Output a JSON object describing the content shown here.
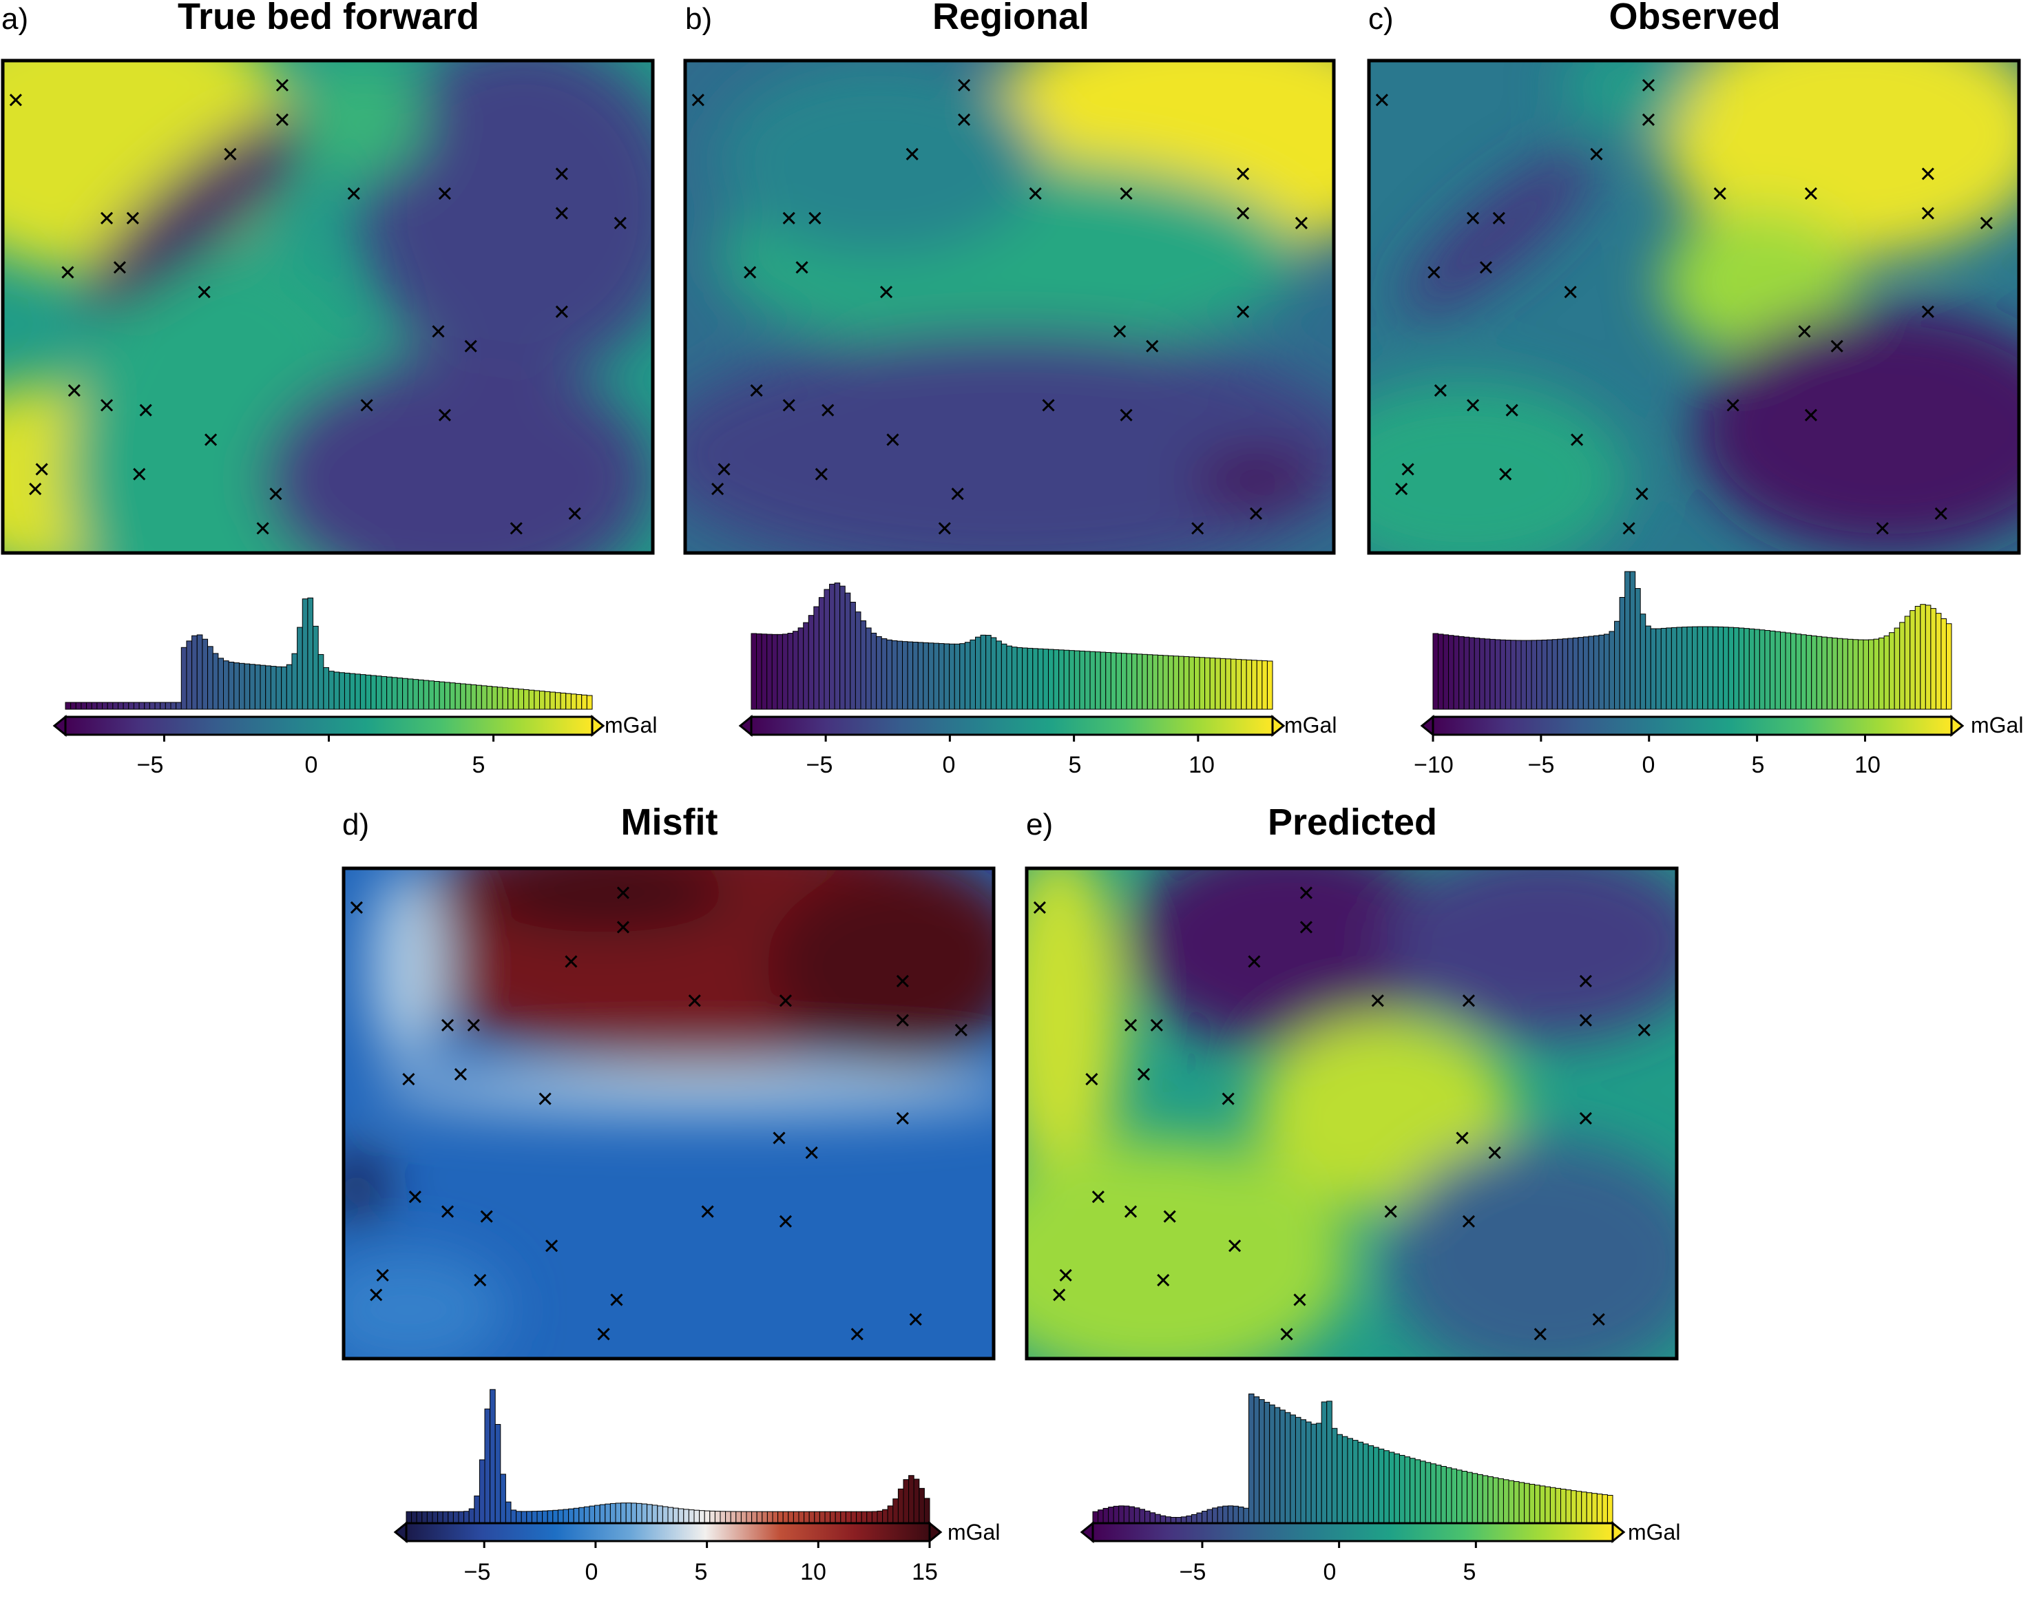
{
  "figure": {
    "colorbar_unit": "mGal",
    "panels": [
      {
        "letter": "a)",
        "title": "True bed forward",
        "cmap": "viridis",
        "ticks": [
          "−5",
          "0",
          "5"
        ]
      },
      {
        "letter": "b)",
        "title": "Regional",
        "cmap": "viridis",
        "ticks": [
          "−5",
          "0",
          "5",
          "10"
        ]
      },
      {
        "letter": "c)",
        "title": "Observed",
        "cmap": "viridis",
        "ticks": [
          "−10",
          "−5",
          "0",
          "5",
          "10"
        ]
      },
      {
        "letter": "d)",
        "title": "Misfit",
        "cmap": "balance",
        "ticks": [
          "−5",
          "0",
          "5",
          "10",
          "15"
        ]
      },
      {
        "letter": "e)",
        "title": "Predicted",
        "cmap": "viridis",
        "ticks": [
          "−5",
          "0",
          "5"
        ]
      }
    ]
  },
  "colors": {
    "viridis": [
      "#440154",
      "#46327e",
      "#365c8d",
      "#277f8e",
      "#1fa187",
      "#4ac16d",
      "#a0da39",
      "#fde725"
    ],
    "balance": [
      "#1a1a4a",
      "#2a4aa0",
      "#1e6fc4",
      "#6aa6d8",
      "#f2f0ee",
      "#c05038",
      "#8a1e22",
      "#3c0a12"
    ],
    "marker": "#000000",
    "frame": "#000000"
  },
  "chart_data": [
    {
      "type": "heatmap",
      "title": "True bed forward",
      "unit": "mGal",
      "color_range": [
        -8,
        8
      ],
      "colorbar_ticks": [
        -5,
        0,
        5
      ],
      "histogram_peak": -0.3,
      "points": [
        [
          0.02,
          0.92
        ],
        [
          0.43,
          0.95
        ],
        [
          0.43,
          0.88
        ],
        [
          0.35,
          0.81
        ],
        [
          0.16,
          0.68
        ],
        [
          0.2,
          0.68
        ],
        [
          0.1,
          0.57
        ],
        [
          0.18,
          0.58
        ],
        [
          0.31,
          0.53
        ],
        [
          0.54,
          0.73
        ],
        [
          0.68,
          0.73
        ],
        [
          0.86,
          0.77
        ],
        [
          0.86,
          0.69
        ],
        [
          0.95,
          0.67
        ],
        [
          0.86,
          0.49
        ],
        [
          0.67,
          0.45
        ],
        [
          0.72,
          0.42
        ],
        [
          0.11,
          0.33
        ],
        [
          0.16,
          0.3
        ],
        [
          0.22,
          0.29
        ],
        [
          0.32,
          0.23
        ],
        [
          0.56,
          0.3
        ],
        [
          0.68,
          0.28
        ],
        [
          0.06,
          0.17
        ],
        [
          0.05,
          0.13
        ],
        [
          0.21,
          0.16
        ],
        [
          0.42,
          0.12
        ],
        [
          0.4,
          0.05
        ],
        [
          0.79,
          0.05
        ],
        [
          0.88,
          0.08
        ]
      ]
    },
    {
      "type": "heatmap",
      "title": "Regional",
      "unit": "mGal",
      "color_range": [
        -8,
        13
      ],
      "colorbar_ticks": [
        -5,
        0,
        5,
        10
      ],
      "histogram_peak": -4.8,
      "points": [
        [
          0.02,
          0.92
        ],
        [
          0.43,
          0.95
        ],
        [
          0.43,
          0.88
        ],
        [
          0.35,
          0.81
        ],
        [
          0.16,
          0.68
        ],
        [
          0.2,
          0.68
        ],
        [
          0.1,
          0.57
        ],
        [
          0.18,
          0.58
        ],
        [
          0.31,
          0.53
        ],
        [
          0.54,
          0.73
        ],
        [
          0.68,
          0.73
        ],
        [
          0.86,
          0.77
        ],
        [
          0.86,
          0.69
        ],
        [
          0.95,
          0.67
        ],
        [
          0.86,
          0.49
        ],
        [
          0.67,
          0.45
        ],
        [
          0.72,
          0.42
        ],
        [
          0.11,
          0.33
        ],
        [
          0.16,
          0.3
        ],
        [
          0.22,
          0.29
        ],
        [
          0.32,
          0.23
        ],
        [
          0.56,
          0.3
        ],
        [
          0.68,
          0.28
        ],
        [
          0.06,
          0.17
        ],
        [
          0.05,
          0.13
        ],
        [
          0.21,
          0.16
        ],
        [
          0.42,
          0.12
        ],
        [
          0.4,
          0.05
        ],
        [
          0.79,
          0.05
        ],
        [
          0.88,
          0.08
        ]
      ]
    },
    {
      "type": "heatmap",
      "title": "Observed",
      "unit": "mGal",
      "color_range": [
        -10,
        14
      ],
      "colorbar_ticks": [
        -10,
        -5,
        0,
        5,
        10
      ],
      "histogram_peak": -1.0,
      "points": [
        [
          0.02,
          0.92
        ],
        [
          0.43,
          0.95
        ],
        [
          0.43,
          0.88
        ],
        [
          0.35,
          0.81
        ],
        [
          0.16,
          0.68
        ],
        [
          0.2,
          0.68
        ],
        [
          0.1,
          0.57
        ],
        [
          0.18,
          0.58
        ],
        [
          0.31,
          0.53
        ],
        [
          0.54,
          0.73
        ],
        [
          0.68,
          0.73
        ],
        [
          0.86,
          0.77
        ],
        [
          0.86,
          0.69
        ],
        [
          0.95,
          0.67
        ],
        [
          0.86,
          0.49
        ],
        [
          0.67,
          0.45
        ],
        [
          0.72,
          0.42
        ],
        [
          0.11,
          0.33
        ],
        [
          0.16,
          0.3
        ],
        [
          0.22,
          0.29
        ],
        [
          0.32,
          0.23
        ],
        [
          0.56,
          0.3
        ],
        [
          0.68,
          0.28
        ],
        [
          0.06,
          0.17
        ],
        [
          0.05,
          0.13
        ],
        [
          0.21,
          0.16
        ],
        [
          0.42,
          0.12
        ],
        [
          0.4,
          0.05
        ],
        [
          0.79,
          0.05
        ],
        [
          0.88,
          0.08
        ]
      ]
    },
    {
      "type": "heatmap",
      "title": "Misfit",
      "unit": "mGal",
      "color_range": [
        -8.5,
        15
      ],
      "colorbar_ticks": [
        -5,
        0,
        5,
        10,
        15
      ],
      "histogram_peak": -5.0,
      "points": [
        [
          0.02,
          0.92
        ],
        [
          0.43,
          0.95
        ],
        [
          0.43,
          0.88
        ],
        [
          0.35,
          0.81
        ],
        [
          0.16,
          0.68
        ],
        [
          0.2,
          0.68
        ],
        [
          0.1,
          0.57
        ],
        [
          0.18,
          0.58
        ],
        [
          0.31,
          0.53
        ],
        [
          0.54,
          0.73
        ],
        [
          0.68,
          0.73
        ],
        [
          0.86,
          0.77
        ],
        [
          0.86,
          0.69
        ],
        [
          0.95,
          0.67
        ],
        [
          0.86,
          0.49
        ],
        [
          0.67,
          0.45
        ],
        [
          0.72,
          0.42
        ],
        [
          0.11,
          0.33
        ],
        [
          0.16,
          0.3
        ],
        [
          0.22,
          0.29
        ],
        [
          0.32,
          0.23
        ],
        [
          0.56,
          0.3
        ],
        [
          0.68,
          0.28
        ],
        [
          0.06,
          0.17
        ],
        [
          0.05,
          0.13
        ],
        [
          0.21,
          0.16
        ],
        [
          0.42,
          0.12
        ],
        [
          0.4,
          0.05
        ],
        [
          0.79,
          0.05
        ],
        [
          0.88,
          0.08
        ]
      ]
    },
    {
      "type": "heatmap",
      "title": "Predicted",
      "unit": "mGal",
      "color_range": [
        -9,
        10
      ],
      "colorbar_ticks": [
        -5,
        0,
        5
      ],
      "histogram_peak": -3.2,
      "points": [
        [
          0.02,
          0.92
        ],
        [
          0.43,
          0.95
        ],
        [
          0.43,
          0.88
        ],
        [
          0.35,
          0.81
        ],
        [
          0.16,
          0.68
        ],
        [
          0.2,
          0.68
        ],
        [
          0.1,
          0.57
        ],
        [
          0.18,
          0.58
        ],
        [
          0.31,
          0.53
        ],
        [
          0.54,
          0.73
        ],
        [
          0.68,
          0.73
        ],
        [
          0.86,
          0.77
        ],
        [
          0.86,
          0.69
        ],
        [
          0.95,
          0.67
        ],
        [
          0.86,
          0.49
        ],
        [
          0.67,
          0.45
        ],
        [
          0.72,
          0.42
        ],
        [
          0.11,
          0.33
        ],
        [
          0.16,
          0.3
        ],
        [
          0.22,
          0.29
        ],
        [
          0.32,
          0.23
        ],
        [
          0.56,
          0.3
        ],
        [
          0.68,
          0.28
        ],
        [
          0.06,
          0.17
        ],
        [
          0.05,
          0.13
        ],
        [
          0.21,
          0.16
        ],
        [
          0.42,
          0.12
        ],
        [
          0.4,
          0.05
        ],
        [
          0.79,
          0.05
        ],
        [
          0.88,
          0.08
        ]
      ]
    }
  ]
}
